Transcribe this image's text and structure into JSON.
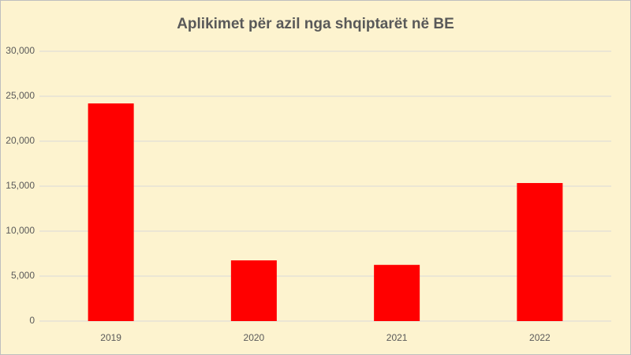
{
  "chart_data": {
    "type": "bar",
    "title": "Aplikimet për azil nga shqiptarët në BE",
    "categories": [
      "2019",
      "2020",
      "2021",
      "2022"
    ],
    "values": [
      24200,
      6750,
      6250,
      15350
    ],
    "color": "#ff0000",
    "ylim": [
      0,
      30000
    ],
    "yticks": [
      0,
      {
        "value": 5000,
        "label": "5,000"
      },
      {
        "value": 10000,
        "label": "10,000"
      },
      {
        "value": 15000,
        "label": "15,000"
      },
      {
        "value": 20000,
        "label": "20,000"
      },
      {
        "value": 25000,
        "label": "25,000"
      },
      {
        "value": 30000,
        "label": "30,000"
      }
    ],
    "grid": true
  }
}
